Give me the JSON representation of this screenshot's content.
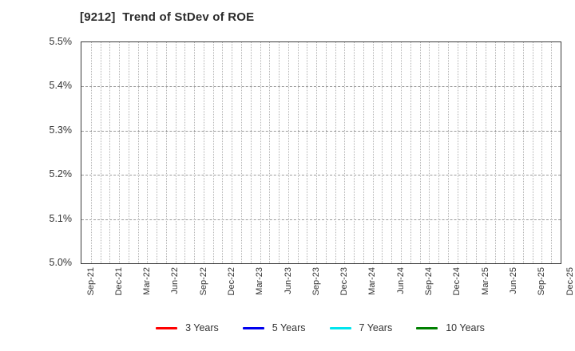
{
  "chart_data": {
    "type": "line",
    "title": "[9212]  Trend of StDev of ROE",
    "x_labels": [
      "Sep-21",
      "Dec-21",
      "Mar-22",
      "Jun-22",
      "Sep-22",
      "Dec-22",
      "Mar-23",
      "Jun-23",
      "Sep-23",
      "Dec-23",
      "Mar-24",
      "Jun-24",
      "Sep-24",
      "Dec-24",
      "Mar-25",
      "Jun-25",
      "Sep-25",
      "Dec-25"
    ],
    "x_minor_ticks_per_label_interval": 3,
    "y_tick_labels": [
      "5.5%",
      "5.4%",
      "5.3%",
      "5.2%",
      "5.1%",
      "5.0%"
    ],
    "ylim": [
      5.0,
      5.5
    ],
    "y_unit": "%",
    "grid": {
      "horizontal": "dashed",
      "vertical": "dotted-monthly",
      "h_color": "#9a9a9a",
      "v_color": "#b3b3b3"
    },
    "legend_position": "bottom-center",
    "series": [
      {
        "name": "3 Years",
        "color": "#ff0000",
        "values": []
      },
      {
        "name": "5 Years",
        "color": "#0000ee",
        "values": []
      },
      {
        "name": "7 Years",
        "color": "#00e5ee",
        "values": []
      },
      {
        "name": "10 Years",
        "color": "#008000",
        "values": []
      }
    ],
    "plot_is_empty": "no data points plotted within visible axis range"
  }
}
